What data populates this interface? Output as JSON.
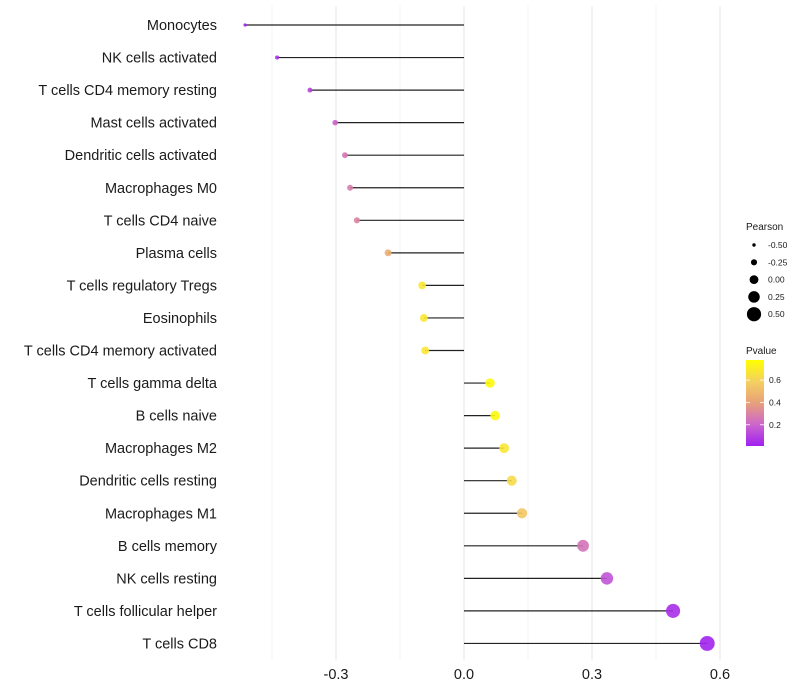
{
  "chart_data": {
    "type": "lollipop",
    "title": "",
    "xlabel": "",
    "ylabel": "",
    "xlim": [
      -0.54,
      0.62
    ],
    "x_ticks": [
      -0.3,
      0.0,
      0.3,
      0.6
    ],
    "x_tick_labels": [
      "-0.3",
      "0.0",
      "0.3",
      "0.6"
    ],
    "grid": true,
    "categories": [
      "Monocytes",
      "NK cells activated",
      "T cells CD4 memory resting",
      "Mast cells activated",
      "Dendritic cells activated",
      "Macrophages M0",
      "T cells CD4 naive",
      "Plasma cells",
      "T cells regulatory  Tregs",
      "Eosinophils",
      "T cells CD4 memory activated",
      "T cells gamma delta",
      "B cells naive",
      "Macrophages M2",
      "Dendritic cells resting",
      "Macrophages M1",
      "B cells memory",
      "NK cells resting",
      "T cells follicular helper",
      "T cells CD8"
    ],
    "pearson": [
      -0.513,
      -0.438,
      -0.361,
      -0.302,
      -0.279,
      -0.267,
      -0.251,
      -0.178,
      -0.098,
      -0.094,
      -0.091,
      0.061,
      0.073,
      0.094,
      0.112,
      0.136,
      0.279,
      0.335,
      0.49,
      0.57
    ],
    "pvalue": [
      0.01,
      0.05,
      0.1,
      0.2,
      0.26,
      0.28,
      0.3,
      0.45,
      0.68,
      0.68,
      0.68,
      0.76,
      0.75,
      0.68,
      0.63,
      0.55,
      0.25,
      0.15,
      0.05,
      0.02
    ],
    "legend": {
      "size": {
        "title": "Pearson",
        "entries": [
          "-0.50",
          "-0.25",
          "0.00",
          "0.25",
          "0.50"
        ],
        "values": [
          -0.5,
          -0.25,
          0.0,
          0.25,
          0.5
        ]
      },
      "color": {
        "title": "Pvalue",
        "tick_labels": [
          "0.6",
          "0.4",
          "0.2"
        ],
        "ticks": [
          0.6,
          0.4,
          0.2
        ],
        "range": [
          0.01,
          0.78
        ],
        "colors": [
          "#a020f0",
          "#cc66cc",
          "#e8a07a",
          "#f4d060",
          "#ffff00"
        ]
      },
      "placement": "right"
    }
  }
}
